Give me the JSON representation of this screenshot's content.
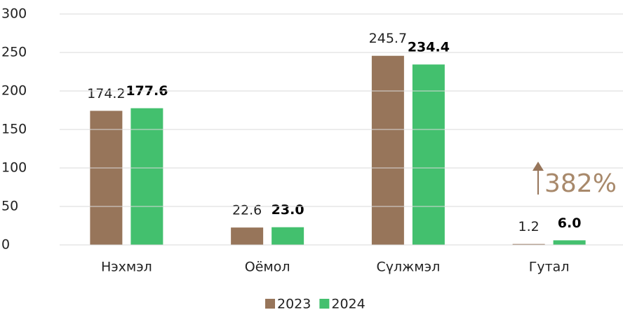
{
  "chart_data": {
    "type": "bar",
    "categories": [
      "Нэхмэл",
      "Оёмол",
      "Сүлжмэл",
      "Гутал"
    ],
    "series": [
      {
        "name": "2023",
        "color": "#97755a",
        "values": [
          174.2,
          22.6,
          245.7,
          1.2
        ],
        "value_labels": [
          "174.2",
          "22.6",
          "245.7",
          "1.2"
        ]
      },
      {
        "name": "2024",
        "color": "#43c06e",
        "values": [
          177.6,
          23.0,
          234.4,
          6.0
        ],
        "value_labels": [
          "177.6",
          "23.0",
          "234.4",
          "6.0"
        ]
      }
    ],
    "ylim": [
      0,
      300
    ],
    "yticks": [
      0,
      50,
      100,
      150,
      200,
      250,
      300
    ],
    "grid": true,
    "annotation": "382%",
    "legend": "bottom"
  }
}
